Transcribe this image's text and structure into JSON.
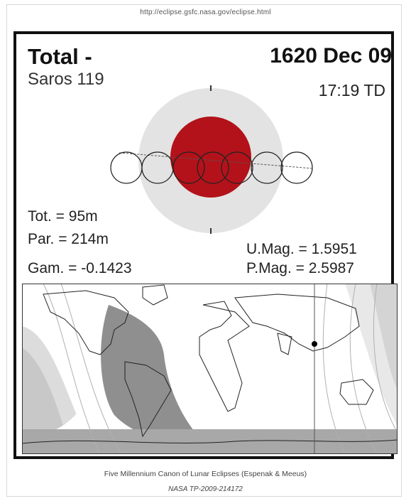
{
  "header": {
    "url": "http://eclipse.gsfc.nasa.gov/eclipse.html"
  },
  "eclipse": {
    "type": "Total  -",
    "saros": "Saros 119",
    "date": "1620 Dec 09",
    "time": "17:19 TD",
    "tot": "Tot. =  95m",
    "par": "Par. = 214m",
    "gam": "Gam. = -0.1423",
    "umag": "U.Mag. = 1.5951",
    "pmag": "P.Mag. = 2.5987"
  },
  "colors": {
    "umbra": "#b3121a",
    "penumbra": "#e3e3e3",
    "night": "#8f8f8f",
    "band": "#c4c4c4",
    "frame": "#111111"
  },
  "footer": {
    "line1": "Five Millennium Canon of Lunar Eclipses (Espenak & Meeus)",
    "line2": "NASA TP-2009-214172"
  }
}
